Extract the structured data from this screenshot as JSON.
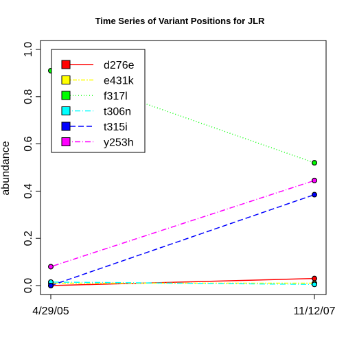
{
  "chart_data": {
    "type": "line",
    "title": "Time Series of Variant Positions for JLR",
    "xlabel": "",
    "ylabel": "abundance",
    "categories": [
      "4/29/05",
      "11/12/07"
    ],
    "ylim": [
      0,
      1.0
    ],
    "yticks": [
      "0.0",
      "0.2",
      "0.4",
      "0.6",
      "0.8",
      "1.0"
    ],
    "legend_position": "top-left",
    "series": [
      {
        "name": "d276e",
        "values": [
          0.0,
          0.03
        ],
        "color": "#ff0000",
        "dash": "solid"
      },
      {
        "name": "e431k",
        "values": [
          0.01,
          0.01
        ],
        "color": "#ffff00",
        "dash": "dotted-dash"
      },
      {
        "name": "f317l",
        "values": [
          0.91,
          0.52
        ],
        "color": "#00ff00",
        "dash": "dotted"
      },
      {
        "name": "t306n",
        "values": [
          0.015,
          0.005
        ],
        "color": "#00ffff",
        "dash": "dot-dash"
      },
      {
        "name": "t315i",
        "values": [
          0.0,
          0.385
        ],
        "color": "#0000ff",
        "dash": "dashed"
      },
      {
        "name": "y253h",
        "values": [
          0.08,
          0.445
        ],
        "color": "#ff00ff",
        "dash": "dot-dash"
      }
    ]
  }
}
